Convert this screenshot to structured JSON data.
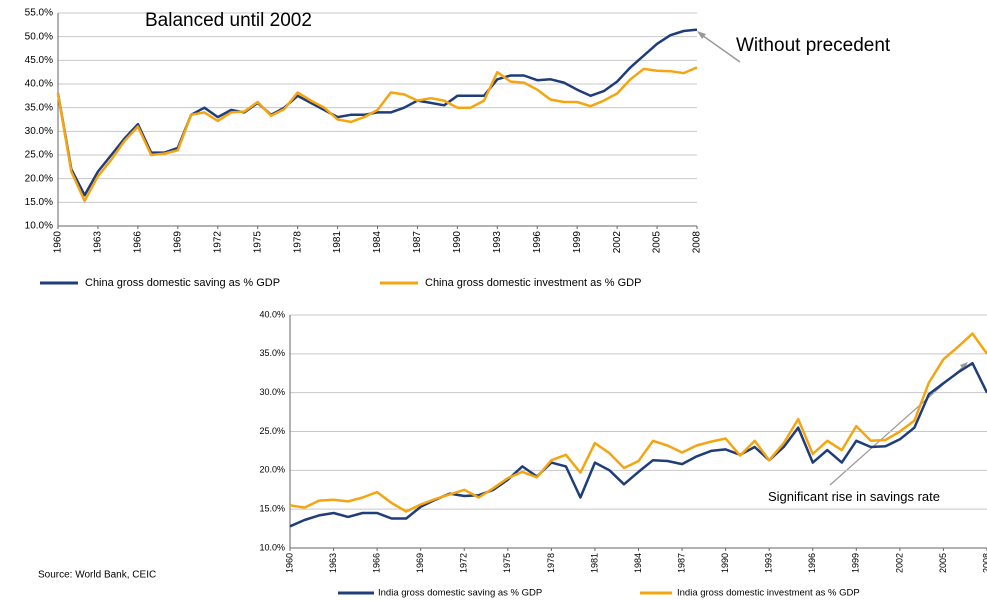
{
  "chart_data": [
    {
      "type": "line",
      "annotations": [
        "Balanced until 2002",
        "Without precedent"
      ],
      "categories": [
        "1960",
        null,
        null,
        "1963",
        null,
        null,
        "1966",
        null,
        null,
        "1969",
        null,
        null,
        "1972",
        null,
        null,
        "1975",
        null,
        null,
        "1978",
        null,
        null,
        "1981",
        null,
        null,
        "1984",
        null,
        null,
        "1987",
        null,
        null,
        "1990",
        null,
        null,
        "1993",
        null,
        null,
        "1996",
        null,
        null,
        "1999",
        null,
        null,
        "2002",
        null,
        null,
        "2005",
        null,
        null,
        "2008"
      ],
      "series": [
        {
          "name": "China gross domestic saving as % GDP",
          "color": "#1f3d7a",
          "values": [
            38,
            22,
            16.5,
            21.5,
            25,
            28.5,
            31.5,
            25.5,
            25.5,
            26.5,
            33.5,
            35,
            33,
            34.5,
            34,
            36,
            33.5,
            35,
            37.5,
            36,
            34.5,
            33,
            33.5,
            33.5,
            34,
            34,
            35,
            36.5,
            36,
            35.5,
            37.5,
            37.5,
            37.5,
            41,
            41.8,
            41.8,
            40.8,
            41,
            40.3,
            38.8,
            37.5,
            38.5,
            40.5,
            43.5,
            46,
            48.5,
            50.3,
            51.2,
            51.5
          ]
        },
        {
          "name": "China gross domestic investment as % GDP",
          "color": "#f5a511",
          "values": [
            38,
            21.5,
            15.3,
            20.5,
            24,
            28,
            31,
            25,
            25.3,
            26,
            33.5,
            34,
            32.2,
            34,
            34.2,
            36.2,
            33.3,
            34.7,
            38.2,
            36.5,
            35,
            32.5,
            32,
            33,
            34.5,
            38.2,
            37.8,
            36.5,
            37,
            36.5,
            35,
            35,
            36.5,
            42.5,
            40.5,
            40.3,
            38.8,
            36.7,
            36.2,
            36.2,
            35.3,
            36.5,
            38,
            41,
            43.2,
            42.8,
            42.7,
            42.3,
            43.5
          ]
        }
      ],
      "ylim": [
        10,
        55
      ],
      "yticks": [
        {
          "value": 10,
          "label": "10.0%"
        },
        {
          "value": 15,
          "label": "15.0%"
        },
        {
          "value": 20,
          "label": "20.0%"
        },
        {
          "value": 25,
          "label": "25.0%"
        },
        {
          "value": 30,
          "label": "30.0%"
        },
        {
          "value": 35,
          "label": "35.0%"
        },
        {
          "value": 40,
          "label": "40.0%"
        },
        {
          "value": 45,
          "label": "45.0%"
        },
        {
          "value": 50,
          "label": "50.0%"
        },
        {
          "value": 55,
          "label": "55.0%"
        }
      ],
      "grid": true,
      "legend": "bottom"
    },
    {
      "type": "line",
      "annotations": [
        "Significant rise in savings rate"
      ],
      "categories": [
        "1960",
        null,
        null,
        "1963",
        null,
        null,
        "1966",
        null,
        null,
        "1969",
        null,
        null,
        "1972",
        null,
        null,
        "1975",
        null,
        null,
        "1978",
        null,
        null,
        "1981",
        null,
        null,
        "1984",
        null,
        null,
        "1987",
        null,
        null,
        "1990",
        null,
        null,
        "1993",
        null,
        null,
        "1996",
        null,
        null,
        "1999",
        null,
        null,
        "2002",
        null,
        null,
        "2005",
        null,
        null,
        "2008"
      ],
      "series": [
        {
          "name": "India gross domestic saving as % GDP",
          "color": "#1f3d7a",
          "values": [
            12.8,
            13.6,
            14.2,
            14.5,
            14,
            14.5,
            14.5,
            13.8,
            13.8,
            15.3,
            16.2,
            17,
            16.7,
            16.8,
            17.5,
            18.8,
            20.5,
            19.2,
            21,
            20.5,
            16.5,
            21,
            20,
            18.2,
            19.8,
            21.3,
            21.2,
            20.8,
            21.8,
            22.5,
            22.7,
            22,
            23,
            21.3,
            23,
            25.5,
            21,
            22.6,
            21,
            23.8,
            23,
            23.1,
            24,
            25.5,
            29.8,
            31.2,
            32.6,
            33.8,
            30
          ]
        },
        {
          "name": "India gross domestic investment as % GDP",
          "color": "#f5a511",
          "values": [
            15.5,
            15.2,
            16.1,
            16.2,
            16,
            16.5,
            17.2,
            15.8,
            14.7,
            15.6,
            16.3,
            16.9,
            17.5,
            16.5,
            17.7,
            19,
            19.8,
            19.1,
            21.3,
            22,
            19.7,
            23.5,
            22.2,
            20.3,
            21.2,
            23.8,
            23.2,
            22.3,
            23.2,
            23.7,
            24.1,
            21.9,
            23.8,
            21.3,
            23.5,
            26.6,
            22.1,
            23.8,
            22.6,
            25.7,
            23.8,
            23.9,
            25,
            26.4,
            31.3,
            34.3,
            35.9,
            37.6,
            35
          ]
        }
      ],
      "ylim": [
        10,
        40
      ],
      "yticks": [
        {
          "value": 10,
          "label": "10.0%"
        },
        {
          "value": 15,
          "label": "15.0%"
        },
        {
          "value": 20,
          "label": "20.0%"
        },
        {
          "value": 25,
          "label": "25.0%"
        },
        {
          "value": 30,
          "label": "30.0%"
        },
        {
          "value": 35,
          "label": "35.0%"
        },
        {
          "value": 40,
          "label": "40.0%"
        }
      ],
      "grid": true,
      "legend": "bottom"
    }
  ],
  "source": "Source: World Bank, CEIC"
}
